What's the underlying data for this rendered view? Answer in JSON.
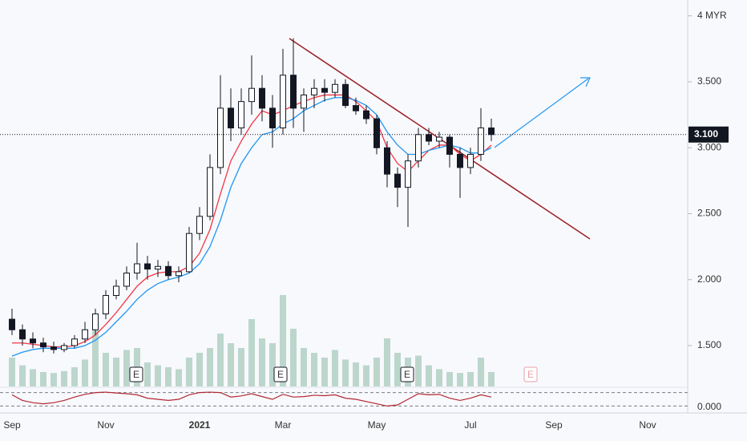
{
  "chart_data": {
    "type": "candlestick",
    "categories": [
      "Sep",
      null,
      null,
      null,
      null,
      null,
      null,
      null,
      null,
      "Nov",
      null,
      null,
      null,
      null,
      null,
      null,
      null,
      null,
      "2021",
      null,
      null,
      null,
      null,
      null,
      null,
      null,
      "Mar",
      null,
      null,
      null,
      null,
      null,
      null,
      null,
      null,
      "May",
      null,
      null,
      null,
      null,
      null,
      null,
      null,
      null,
      "Jul",
      null,
      null,
      null,
      null,
      null,
      null,
      null,
      "Sep",
      null,
      null,
      null,
      null,
      null,
      null,
      null,
      null,
      "Nov"
    ],
    "open": [
      1.7,
      1.62,
      1.55,
      1.52,
      1.49,
      1.47,
      1.5,
      1.55,
      1.62,
      1.74,
      1.88,
      1.95,
      2.05,
      2.12,
      2.08,
      2.1,
      2.03,
      2.06,
      2.35,
      2.48,
      2.85,
      3.3,
      3.15,
      3.35,
      3.45,
      3.3,
      3.15,
      3.55,
      3.3,
      3.4,
      3.45,
      3.42,
      3.48,
      3.32,
      3.28,
      3.22,
      3.0,
      2.8,
      2.7,
      2.9,
      3.1,
      3.05,
      3.08,
      2.95,
      2.85,
      2.95,
      3.15,
      null,
      null,
      null,
      null,
      null,
      null,
      null,
      null,
      null,
      null,
      null,
      null,
      null,
      null,
      null
    ],
    "high": [
      1.78,
      1.66,
      1.6,
      1.56,
      1.53,
      1.52,
      1.58,
      1.68,
      1.78,
      1.92,
      2.0,
      2.1,
      2.28,
      2.18,
      2.15,
      2.14,
      2.1,
      2.4,
      2.55,
      2.95,
      3.55,
      3.45,
      3.45,
      3.7,
      3.55,
      3.4,
      3.75,
      3.83,
      3.45,
      3.52,
      3.52,
      3.52,
      3.52,
      3.38,
      3.32,
      3.25,
      3.05,
      2.85,
      2.95,
      3.15,
      3.15,
      3.12,
      3.1,
      3.0,
      3.0,
      3.3,
      3.22,
      null,
      null,
      null,
      null,
      null,
      null,
      null,
      null,
      null,
      null,
      null,
      null,
      null,
      null,
      null
    ],
    "low": [
      1.58,
      1.5,
      1.48,
      1.45,
      1.44,
      1.45,
      1.48,
      1.52,
      1.58,
      1.7,
      1.85,
      1.92,
      2.0,
      2.0,
      2.02,
      2.0,
      1.98,
      2.05,
      2.3,
      2.45,
      2.8,
      3.05,
      3.1,
      3.25,
      3.2,
      3.0,
      3.1,
      3.15,
      3.12,
      3.3,
      3.35,
      3.38,
      3.3,
      3.25,
      3.18,
      2.95,
      2.7,
      2.55,
      2.4,
      2.85,
      3.02,
      3.0,
      2.85,
      2.62,
      2.8,
      2.9,
      3.05,
      null,
      null,
      null,
      null,
      null,
      null,
      null,
      null,
      null,
      null,
      null,
      null,
      null,
      null,
      null
    ],
    "close": [
      1.62,
      1.55,
      1.52,
      1.49,
      1.47,
      1.5,
      1.55,
      1.62,
      1.74,
      1.88,
      1.95,
      2.05,
      2.12,
      2.08,
      2.1,
      2.03,
      2.06,
      2.35,
      2.48,
      2.85,
      3.3,
      3.15,
      3.35,
      3.45,
      3.3,
      3.15,
      3.55,
      3.3,
      3.4,
      3.45,
      3.42,
      3.48,
      3.32,
      3.28,
      3.22,
      3.0,
      2.8,
      2.7,
      2.9,
      3.1,
      3.05,
      3.08,
      2.95,
      2.85,
      2.95,
      3.15,
      3.1,
      null,
      null,
      null,
      null,
      null,
      null,
      null,
      null,
      null,
      null,
      null,
      null,
      null,
      null,
      null
    ],
    "series": [
      {
        "color": "#f23645",
        "values": [
          1.52,
          1.52,
          1.51,
          1.5,
          1.49,
          1.49,
          1.5,
          1.53,
          1.58,
          1.66,
          1.75,
          1.85,
          1.95,
          2.02,
          2.05,
          2.06,
          2.06,
          2.1,
          2.2,
          2.38,
          2.65,
          2.9,
          3.05,
          3.18,
          3.28,
          3.25,
          3.28,
          3.32,
          3.35,
          3.38,
          3.4,
          3.4,
          3.4,
          3.35,
          3.28,
          3.2,
          3.0,
          2.88,
          2.82,
          2.9,
          2.98,
          3.02,
          3.02,
          2.95,
          2.9,
          2.95,
          3.02,
          null,
          null,
          null,
          null,
          null,
          null,
          null,
          null,
          null,
          null,
          null,
          null,
          null,
          null,
          null
        ]
      },
      {
        "color": "#2196f3",
        "values": [
          1.42,
          1.45,
          1.47,
          1.48,
          1.48,
          1.48,
          1.48,
          1.5,
          1.54,
          1.6,
          1.68,
          1.76,
          1.85,
          1.92,
          1.97,
          2.0,
          2.02,
          2.05,
          2.12,
          2.25,
          2.45,
          2.7,
          2.88,
          3.0,
          3.1,
          3.12,
          3.18,
          3.22,
          3.28,
          3.32,
          3.36,
          3.38,
          3.38,
          3.36,
          3.32,
          3.25,
          3.12,
          3.02,
          2.95,
          2.95,
          2.98,
          3.0,
          3.02,
          3.0,
          2.96,
          2.96,
          3.0,
          null,
          null,
          null,
          null,
          null,
          null,
          null,
          null,
          null,
          null,
          null,
          null,
          null,
          null,
          null
        ]
      }
    ],
    "candle_color": "#131722",
    "ylim": [
      1.19,
      4.12
    ],
    "yticks": [
      {
        "value": 4,
        "label": "4 MYR"
      },
      {
        "value": 3.5,
        "label": "3.500"
      },
      {
        "value": 3,
        "label": "3.000"
      },
      {
        "value": 2.5,
        "label": "2.500"
      },
      {
        "value": 2,
        "label": "2.000"
      },
      {
        "value": 1.5,
        "label": "1.500"
      }
    ],
    "last_price": {
      "value": 3.1,
      "label": "3.100"
    },
    "volume": {
      "color": "#a3c7b8",
      "ylim": [
        0,
        100
      ],
      "values": [
        30,
        22,
        18,
        15,
        14,
        16,
        20,
        28,
        60,
        35,
        30,
        38,
        40,
        25,
        22,
        20,
        18,
        30,
        35,
        40,
        55,
        45,
        40,
        70,
        50,
        45,
        95,
        60,
        40,
        35,
        30,
        38,
        28,
        25,
        22,
        30,
        50,
        35,
        30,
        32,
        22,
        18,
        15,
        14,
        15,
        30,
        15,
        null,
        null,
        null,
        null,
        null,
        null,
        null,
        null,
        null,
        null,
        null,
        null,
        null,
        null,
        null
      ]
    },
    "oscillator": {
      "color": "#b22833",
      "ylim": [
        0,
        100
      ],
      "yticks": [
        {
          "value": 0,
          "label": "0.000"
        }
      ],
      "bands": [
        80,
        20
      ],
      "values": [
        70,
        45,
        35,
        30,
        35,
        45,
        60,
        72,
        80,
        82,
        78,
        75,
        70,
        55,
        50,
        45,
        50,
        70,
        80,
        82,
        80,
        60,
        65,
        75,
        62,
        50,
        72,
        60,
        62,
        68,
        66,
        70,
        55,
        50,
        40,
        30,
        20,
        25,
        50,
        75,
        70,
        72,
        55,
        45,
        55,
        70,
        60,
        null,
        null,
        null,
        null,
        null,
        null,
        null,
        null,
        null,
        null,
        null,
        null,
        null,
        null,
        null
      ]
    },
    "events": [
      "E",
      "E",
      "E",
      "E"
    ]
  }
}
